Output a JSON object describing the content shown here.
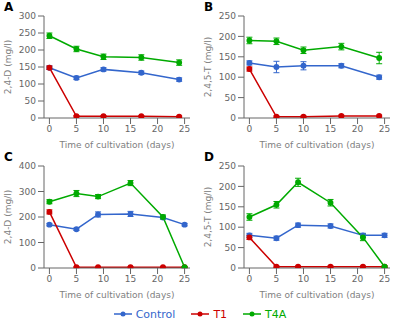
{
  "chart_data": [
    {
      "type": "line",
      "title": "A",
      "xlabel": "Time of cultivation (days)",
      "ylabel": "2,4-D (mg/l)",
      "x": [
        0,
        5,
        10,
        17,
        24
      ],
      "xlim": [
        -1,
        26
      ],
      "xticks": [
        0,
        5,
        10,
        15,
        20,
        25
      ],
      "ylim": [
        0,
        300
      ],
      "yticks": [
        0,
        50,
        100,
        150,
        200,
        250,
        300
      ],
      "legend": "bottom",
      "series": [
        {
          "name": "Control",
          "color": "#3366cc",
          "marker": "circle",
          "values": [
            148,
            118,
            143,
            133,
            113
          ],
          "yerr": [
            5,
            5,
            5,
            5,
            5
          ]
        },
        {
          "name": "T1",
          "color": "#cc0000",
          "marker": "circle",
          "values": [
            148,
            5,
            5,
            5,
            4
          ],
          "yerr": [
            5,
            2,
            2,
            2,
            2
          ]
        },
        {
          "name": "T4A",
          "color": "#00aa00",
          "marker": "circle",
          "values": [
            242,
            203,
            180,
            178,
            163
          ],
          "yerr": [
            8,
            8,
            8,
            8,
            8
          ]
        }
      ]
    },
    {
      "type": "line",
      "title": "B",
      "xlabel": "Time of cultivation (days)",
      "ylabel": "2,4,5-T (mg/l)",
      "x": [
        0,
        5,
        10,
        17,
        24
      ],
      "xlim": [
        -1,
        26
      ],
      "xticks": [
        0,
        5,
        10,
        15,
        20,
        25
      ],
      "ylim": [
        0,
        250
      ],
      "yticks": [
        0,
        50,
        100,
        150,
        200,
        250
      ],
      "legend": "bottom",
      "series": [
        {
          "name": "Control",
          "color": "#3366cc",
          "marker": "circle",
          "values": [
            135,
            125,
            128,
            128,
            100
          ],
          "yerr": [
            5,
            14,
            10,
            5,
            5
          ]
        },
        {
          "name": "T1",
          "color": "#cc0000",
          "marker": "circle",
          "values": [
            120,
            3,
            3,
            5,
            5
          ],
          "yerr": [
            5,
            2,
            2,
            2,
            2
          ]
        },
        {
          "name": "T4A",
          "color": "#00aa00",
          "marker": "circle",
          "values": [
            190,
            188,
            166,
            175,
            147
          ],
          "yerr": [
            8,
            8,
            8,
            8,
            14
          ]
        }
      ]
    },
    {
      "type": "line",
      "title": "C",
      "xlabel": "Time of cultivation (days)",
      "ylabel": "2,4-D (mg/l)",
      "x": [
        0,
        5,
        9,
        15,
        21,
        25
      ],
      "xlim": [
        -1,
        26
      ],
      "xticks": [
        0,
        5,
        10,
        15,
        20,
        25
      ],
      "ylim": [
        0,
        400
      ],
      "yticks": [
        0,
        100,
        200,
        300,
        400
      ],
      "legend": "bottom",
      "series": [
        {
          "name": "Control",
          "color": "#3366cc",
          "marker": "circle",
          "values": [
            170,
            152,
            210,
            212,
            198,
            170
          ],
          "yerr": [
            5,
            5,
            10,
            10,
            5,
            5
          ]
        },
        {
          "name": "T1",
          "color": "#cc0000",
          "marker": "circle",
          "values": [
            220,
            3,
            3,
            3,
            3,
            3
          ],
          "yerr": [
            8,
            2,
            2,
            2,
            2,
            2
          ]
        },
        {
          "name": "T4A",
          "color": "#00aa00",
          "marker": "circle",
          "values": [
            260,
            292,
            280,
            333,
            200,
            3
          ],
          "yerr": [
            8,
            12,
            8,
            10,
            8,
            2
          ]
        }
      ]
    },
    {
      "type": "line",
      "title": "D",
      "xlabel": "Time of cultivation (days)",
      "ylabel": "2,4,5-T (mg/l)",
      "x": [
        0,
        5,
        9,
        15,
        21,
        25
      ],
      "xlim": [
        -1,
        26
      ],
      "xticks": [
        0,
        5,
        10,
        15,
        20,
        25
      ],
      "ylim": [
        0,
        250
      ],
      "yticks": [
        0,
        50,
        100,
        150,
        200,
        250
      ],
      "legend": "bottom",
      "series": [
        {
          "name": "Control",
          "color": "#3366cc",
          "marker": "circle",
          "values": [
            80,
            73,
            105,
            103,
            80,
            80
          ],
          "yerr": [
            5,
            5,
            5,
            5,
            5,
            5
          ]
        },
        {
          "name": "T1",
          "color": "#cc0000",
          "marker": "circle",
          "values": [
            75,
            3,
            3,
            3,
            3,
            3
          ],
          "yerr": [
            5,
            2,
            2,
            2,
            2,
            2
          ]
        },
        {
          "name": "T4A",
          "color": "#00aa00",
          "marker": "circle",
          "values": [
            125,
            155,
            210,
            160,
            75,
            3
          ],
          "yerr": [
            8,
            8,
            10,
            8,
            8,
            2
          ]
        }
      ]
    }
  ]
}
